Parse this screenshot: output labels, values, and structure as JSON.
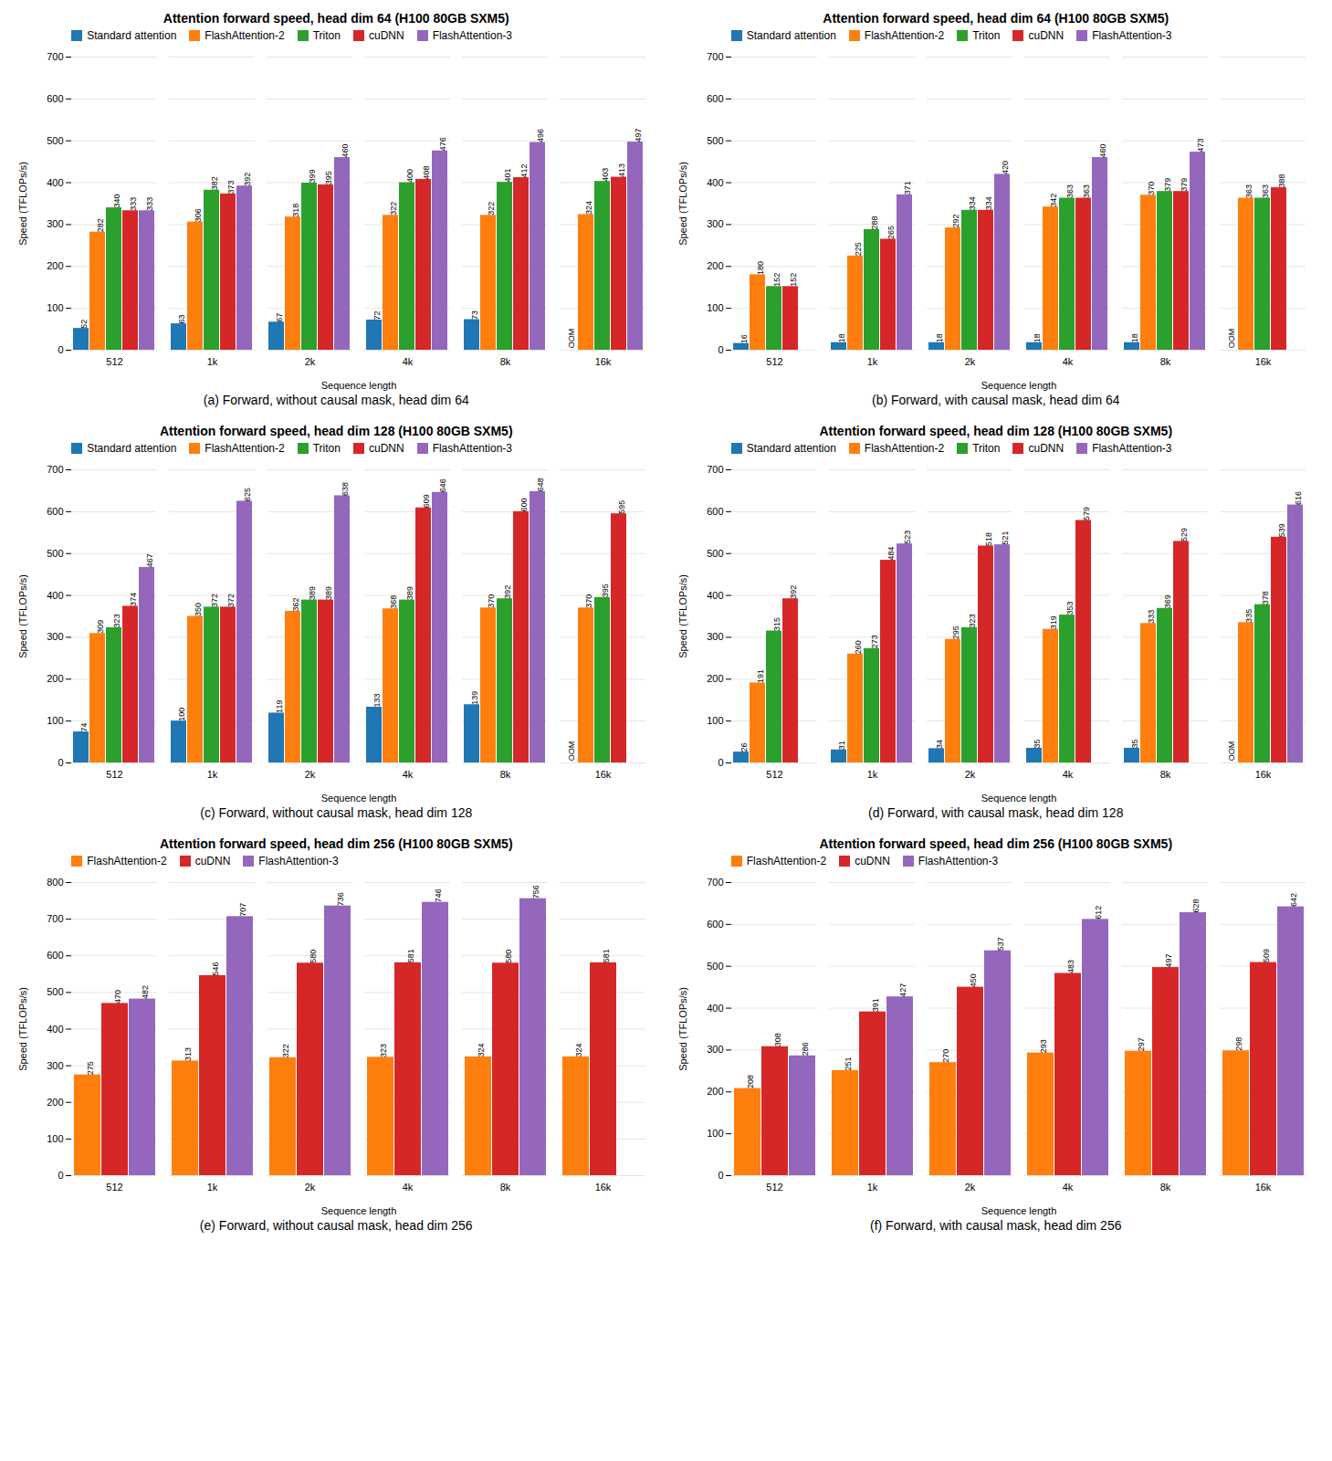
{
  "chart_data": [
    {
      "type": "bar",
      "title": "Attention forward speed, head dim 64 (H100 80GB SXM5)",
      "caption": "(a) Forward, without causal mask, head dim 64",
      "xlabel": "Sequence length",
      "ylabel": "Speed (TFLOPs/s)",
      "categories": [
        "512",
        "1k",
        "2k",
        "4k",
        "8k",
        "16k"
      ],
      "series": [
        {
          "name": "Standard attention",
          "color": "#1f77b4",
          "values": [
            52,
            63,
            67,
            72,
            73,
            null
          ]
        },
        {
          "name": "FlashAttention-2",
          "color": "#ff7f0e",
          "values": [
            282,
            306,
            318,
            322,
            322,
            324
          ]
        },
        {
          "name": "Triton",
          "color": "#2ca02c",
          "values": [
            340,
            382,
            399,
            400,
            401,
            403
          ]
        },
        {
          "name": "cuDNN",
          "color": "#d62728",
          "values": [
            333,
            373,
            395,
            408,
            412,
            413
          ]
        },
        {
          "name": "FlashAttention-3",
          "color": "#9467bd",
          "values": [
            333,
            392,
            460,
            476,
            496,
            497
          ]
        }
      ],
      "annotations": [
        {
          "text": "OOM",
          "category": "16k",
          "series": "Standard attention",
          "y": 5
        }
      ],
      "ylim": [
        0,
        700
      ],
      "yticks": [
        0,
        100,
        200,
        300,
        400,
        500,
        600,
        700
      ],
      "grid": true,
      "legend": "upper left",
      "data_labels": true
    },
    {
      "type": "bar",
      "title": "Attention forward speed, head dim 64 (H100 80GB SXM5)",
      "caption": "(b) Forward, with causal mask, head dim 64",
      "xlabel": "Sequence length",
      "ylabel": "Speed (TFLOPs/s)",
      "categories": [
        "512",
        "1k",
        "2k",
        "4k",
        "8k",
        "16k"
      ],
      "series": [
        {
          "name": "Standard attention",
          "color": "#1f77b4",
          "values": [
            16,
            18,
            18,
            18,
            18,
            null
          ]
        },
        {
          "name": "FlashAttention-2",
          "color": "#ff7f0e",
          "values": [
            180,
            225,
            292,
            342,
            370,
            363
          ]
        },
        {
          "name": "Triton",
          "color": "#2ca02c",
          "values": [
            152,
            288,
            334,
            363,
            379,
            363
          ]
        },
        {
          "name": "cuDNN",
          "color": "#d62728",
          "values": [
            152,
            265,
            334,
            363,
            379,
            388
          ]
        },
        {
          "name": "FlashAttention-3",
          "color": "#9467bd",
          "values": [
            null,
            371,
            420,
            460,
            473,
            null
          ]
        }
      ],
      "annotations": [
        {
          "text": "OOM",
          "category": "16k",
          "series": "Standard attention",
          "y": 5
        }
      ],
      "ylim": [
        0,
        700
      ],
      "yticks": [
        0,
        100,
        200,
        300,
        400,
        500,
        600,
        700
      ],
      "grid": true,
      "legend": "upper left",
      "data_labels": true
    },
    {
      "type": "bar",
      "title": "Attention forward speed, head dim 128 (H100 80GB SXM5)",
      "caption": "(c) Forward, without causal mask, head dim 128",
      "xlabel": "Sequence length",
      "ylabel": "Speed (TFLOPs/s)",
      "categories": [
        "512",
        "1k",
        "2k",
        "4k",
        "8k",
        "16k"
      ],
      "series": [
        {
          "name": "Standard attention",
          "color": "#1f77b4",
          "values": [
            74,
            100,
            119,
            133,
            139,
            null
          ]
        },
        {
          "name": "FlashAttention-2",
          "color": "#ff7f0e",
          "values": [
            309,
            350,
            362,
            368,
            370,
            370
          ]
        },
        {
          "name": "Triton",
          "color": "#2ca02c",
          "values": [
            323,
            372,
            389,
            389,
            392,
            395
          ]
        },
        {
          "name": "cuDNN",
          "color": "#d62728",
          "values": [
            374,
            372,
            389,
            609,
            600,
            595
          ]
        },
        {
          "name": "FlashAttention-3",
          "color": "#9467bd",
          "values": [
            467,
            625,
            638,
            646,
            648,
            null
          ]
        }
      ],
      "annotations": [
        {
          "text": "OOM",
          "category": "16k",
          "series": "Standard attention",
          "y": 5
        }
      ],
      "ylim": [
        0,
        700
      ],
      "yticks": [
        0,
        100,
        200,
        300,
        400,
        500,
        600,
        700
      ],
      "grid": true,
      "legend": "upper left",
      "data_labels": true
    },
    {
      "type": "bar",
      "title": "Attention forward speed, head dim 128 (H100 80GB SXM5)",
      "caption": "(d) Forward, with causal mask, head dim 128",
      "xlabel": "Sequence length",
      "ylabel": "Speed (TFLOPs/s)",
      "categories": [
        "512",
        "1k",
        "2k",
        "4k",
        "8k",
        "16k"
      ],
      "series": [
        {
          "name": "Standard attention",
          "color": "#1f77b4",
          "values": [
            26,
            31,
            34,
            35,
            35,
            null
          ]
        },
        {
          "name": "FlashAttention-2",
          "color": "#ff7f0e",
          "values": [
            191,
            260,
            295,
            319,
            333,
            335
          ]
        },
        {
          "name": "Triton",
          "color": "#2ca02c",
          "values": [
            315,
            273,
            323,
            353,
            369,
            378
          ]
        },
        {
          "name": "cuDNN",
          "color": "#d62728",
          "values": [
            392,
            484,
            518,
            579,
            529,
            539
          ]
        },
        {
          "name": "FlashAttention-3",
          "color": "#9467bd",
          "values": [
            null,
            523,
            521,
            null,
            null,
            616
          ]
        }
      ],
      "annotations": [
        {
          "text": "OOM",
          "category": "16k",
          "series": "Standard attention",
          "y": 5
        }
      ],
      "ylim": [
        0,
        700
      ],
      "yticks": [
        0,
        100,
        200,
        300,
        400,
        500,
        600,
        700
      ],
      "grid": true,
      "legend": "upper left",
      "data_labels": true
    },
    {
      "type": "bar",
      "title": "Attention forward speed, head dim 256 (H100 80GB SXM5)",
      "caption": "(e) Forward, without causal mask, head dim 256",
      "xlabel": "Sequence length",
      "ylabel": "Speed (TFLOPs/s)",
      "categories": [
        "512",
        "1k",
        "2k",
        "4k",
        "8k",
        "16k"
      ],
      "series": [
        {
          "name": "FlashAttention-2",
          "color": "#ff7f0e",
          "values": [
            275,
            313,
            322,
            323,
            324,
            324
          ]
        },
        {
          "name": "cuDNN",
          "color": "#d62728",
          "values": [
            470,
            546,
            580,
            581,
            580,
            581
          ]
        },
        {
          "name": "FlashAttention-3",
          "color": "#9467bd",
          "values": [
            482,
            707,
            736,
            746,
            756,
            null
          ]
        }
      ],
      "ylim": [
        0,
        800
      ],
      "yticks": [
        0,
        100,
        200,
        300,
        400,
        500,
        600,
        700,
        800
      ],
      "grid": true,
      "legend": "upper left",
      "data_labels": true
    },
    {
      "type": "bar",
      "title": "Attention forward speed, head dim 256 (H100 80GB SXM5)",
      "caption": "(f) Forward, with causal mask, head dim 256",
      "xlabel": "Sequence length",
      "ylabel": "Speed (TFLOPs/s)",
      "categories": [
        "512",
        "1k",
        "2k",
        "4k",
        "8k",
        "16k"
      ],
      "series": [
        {
          "name": "FlashAttention-2",
          "color": "#ff7f0e",
          "values": [
            208,
            251,
            270,
            293,
            297,
            298
          ]
        },
        {
          "name": "cuDNN",
          "color": "#d62728",
          "values": [
            308,
            391,
            450,
            483,
            497,
            509
          ]
        },
        {
          "name": "FlashAttention-3",
          "color": "#9467bd",
          "values": [
            286,
            427,
            537,
            612,
            628,
            642
          ]
        }
      ],
      "ylim": [
        0,
        700
      ],
      "yticks": [
        0,
        100,
        200,
        300,
        400,
        500,
        600,
        700
      ],
      "grid": true,
      "legend": "upper left",
      "data_labels": true
    }
  ]
}
